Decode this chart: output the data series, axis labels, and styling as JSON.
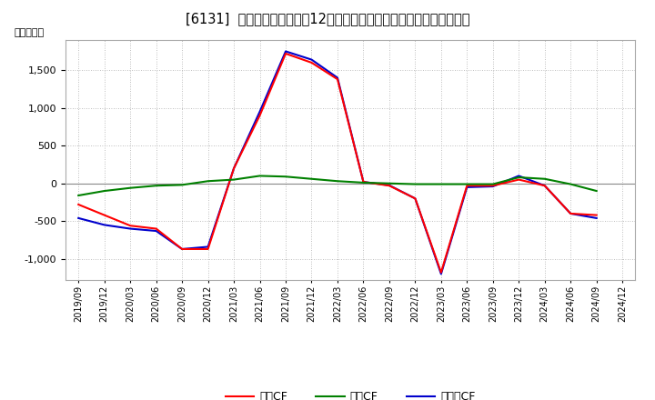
{
  "title": "[6131]  キャッシュフローの12か月移動合計の対前年同期増減額の推移",
  "ylabel": "（百万円）",
  "x_labels": [
    "2019/09",
    "2019/12",
    "2020/03",
    "2020/06",
    "2020/09",
    "2020/12",
    "2021/03",
    "2021/06",
    "2021/09",
    "2021/12",
    "2022/03",
    "2022/06",
    "2022/09",
    "2022/12",
    "2023/03",
    "2023/06",
    "2023/09",
    "2023/12",
    "2024/03",
    "2024/06",
    "2024/09",
    "2024/12"
  ],
  "eigyo": [
    -280,
    -420,
    -560,
    -600,
    -870,
    -870,
    200,
    900,
    1720,
    1600,
    1380,
    20,
    -30,
    -200,
    -1180,
    -30,
    -30,
    50,
    -30,
    -400,
    -420,
    null
  ],
  "toshi": [
    -160,
    -100,
    -60,
    -30,
    -20,
    30,
    50,
    100,
    90,
    60,
    30,
    10,
    0,
    -10,
    -10,
    -10,
    -10,
    80,
    60,
    -10,
    -100,
    null
  ],
  "free": [
    -460,
    -550,
    -600,
    -630,
    -870,
    -840,
    200,
    950,
    1750,
    1640,
    1400,
    20,
    -25,
    -200,
    -1200,
    -50,
    -40,
    100,
    -30,
    -400,
    -460,
    null
  ],
  "ylim": [
    -1280,
    1900
  ],
  "yticks": [
    -1000,
    -500,
    0,
    500,
    1000,
    1500
  ],
  "color_eigyo": "#ff0000",
  "color_toshi": "#008000",
  "color_free": "#0000cc",
  "bg_color": "#ffffff",
  "grid_color": "#aaaaaa",
  "linewidth": 1.5,
  "legend_eigyo": "営業CF",
  "legend_toshi": "投資CF",
  "legend_free": "フリーCF"
}
